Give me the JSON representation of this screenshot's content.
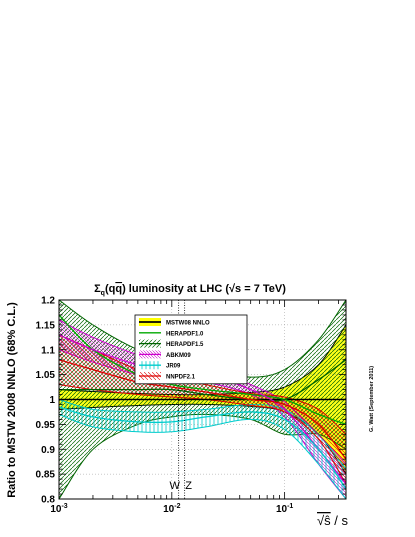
{
  "chart_data": {
    "type": "line",
    "title": "Σq(qq̄) luminosity at LHC (√s = 7 TeV)",
    "title_parts": {
      "pre": "Σ",
      "sub": "q",
      "mid": "(q",
      "bar": "q",
      "post": ") luminosity at LHC (√s = 7 TeV)"
    },
    "ylabel": "Ratio to MSTW 2008 NNLO (68% C.L.)",
    "xlabel": "√ŝ / s",
    "xlabel_parts": {
      "sqrt_s": "√ŝ",
      "rest": " / s"
    },
    "x_scale": "log",
    "xlim": [
      0.001,
      0.35
    ],
    "ylim": [
      0.8,
      1.2
    ],
    "x_ticks": [
      0.001,
      0.01,
      0.1
    ],
    "x_tick_labels": [
      "10-3",
      "10-2",
      "10-1"
    ],
    "y_ticks": [
      0.8,
      0.85,
      0.9,
      0.95,
      1.0,
      1.05,
      1.1,
      1.15,
      1.2
    ],
    "y_tick_labels": [
      "0.8",
      "0.85",
      "0.9",
      "0.95",
      "1",
      "1.05",
      "1.1",
      "1.15",
      "1.2"
    ],
    "reference_lines": [
      {
        "label": "W",
        "x": 0.0115
      },
      {
        "label": "Z",
        "x": 0.013
      }
    ],
    "legend_position": "top-left",
    "series": [
      {
        "name": "MSTW08 NNLO",
        "color": "#000000",
        "band_color": "#ffff00",
        "x": [
          0.001,
          0.002,
          0.005,
          0.01,
          0.02,
          0.05,
          0.1,
          0.2,
          0.35
        ],
        "central": [
          1.0,
          1.0,
          1.0,
          1.0,
          1.0,
          1.0,
          1.0,
          1.0,
          1.0
        ],
        "upper": [
          1.02,
          1.016,
          1.012,
          1.01,
          1.01,
          1.014,
          1.025,
          1.07,
          1.15
        ],
        "lower": [
          0.98,
          0.984,
          0.988,
          0.99,
          0.99,
          0.986,
          0.975,
          0.93,
          0.85
        ]
      },
      {
        "name": "HERAPDF1.0",
        "color": "#00aa00",
        "x": [
          0.001,
          0.002,
          0.005,
          0.01,
          0.02,
          0.05,
          0.1,
          0.2,
          0.35
        ],
        "central": [
          1.17,
          1.1,
          1.05,
          1.03,
          1.02,
          1.01,
          1.0,
          0.97,
          0.95
        ]
      },
      {
        "name": "HERAPDF1.5",
        "color": "#006400",
        "band_color": "#006400",
        "x": [
          0.001,
          0.002,
          0.005,
          0.01,
          0.02,
          0.05,
          0.1,
          0.2,
          0.35
        ],
        "central": [
          1.02,
          1.02,
          1.02,
          1.02,
          1.01,
          1.0,
          1.0,
          1.04,
          1.08
        ],
        "upper": [
          1.2,
          1.15,
          1.1,
          1.08,
          1.06,
          1.045,
          1.06,
          1.12,
          1.2
        ],
        "lower": [
          0.8,
          0.9,
          0.95,
          0.965,
          0.97,
          0.96,
          0.93,
          0.93,
          0.9
        ]
      },
      {
        "name": "ABKM09",
        "color": "#cc00cc",
        "band_color": "#cc00cc",
        "x": [
          0.001,
          0.002,
          0.005,
          0.01,
          0.02,
          0.05,
          0.1,
          0.2,
          0.35
        ],
        "central": [
          1.13,
          1.1,
          1.07,
          1.06,
          1.05,
          1.02,
          0.98,
          0.9,
          0.83
        ],
        "upper": [
          1.16,
          1.125,
          1.09,
          1.075,
          1.065,
          1.03,
          0.995,
          0.93,
          0.87
        ],
        "lower": [
          1.1,
          1.075,
          1.05,
          1.045,
          1.035,
          1.01,
          0.965,
          0.87,
          0.8
        ]
      },
      {
        "name": "JR09",
        "color": "#00cccc",
        "band_color": "#00cccc",
        "x": [
          0.001,
          0.002,
          0.005,
          0.01,
          0.02,
          0.05,
          0.1,
          0.2,
          0.35
        ],
        "central": [
          0.985,
          0.965,
          0.955,
          0.955,
          0.965,
          0.975,
          0.96,
          0.9,
          0.82
        ],
        "upper": [
          1.0,
          0.98,
          0.975,
          0.975,
          0.98,
          0.99,
          0.98,
          0.93,
          0.86
        ],
        "lower": [
          0.97,
          0.945,
          0.935,
          0.935,
          0.945,
          0.96,
          0.94,
          0.87,
          0.8
        ]
      },
      {
        "name": "NNPDF2.1",
        "color": "#dd0000",
        "band_color": "#dd0000",
        "x": [
          0.001,
          0.002,
          0.005,
          0.01,
          0.02,
          0.05,
          0.1,
          0.2,
          0.35
        ],
        "central": [
          1.08,
          1.06,
          1.035,
          1.025,
          1.015,
          1.0,
          0.99,
          0.95,
          0.88
        ],
        "upper": [
          1.13,
          1.1,
          1.06,
          1.045,
          1.03,
          1.012,
          1.005,
          0.98,
          0.93
        ],
        "lower": [
          1.03,
          1.02,
          1.01,
          1.005,
          1.0,
          0.988,
          0.975,
          0.92,
          0.83
        ]
      }
    ]
  },
  "side_note": "G. Watt   (September 2011)"
}
